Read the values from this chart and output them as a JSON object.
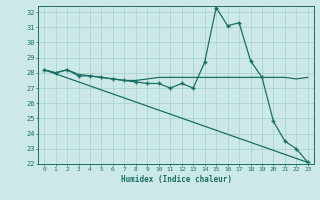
{
  "title": "",
  "xlabel": "Humidex (Indice chaleur)",
  "ylabel": "",
  "xlim": [
    -0.5,
    23.5
  ],
  "ylim": [
    22,
    32.4
  ],
  "yticks": [
    22,
    23,
    24,
    25,
    26,
    27,
    28,
    29,
    30,
    31,
    32
  ],
  "xticks": [
    0,
    1,
    2,
    3,
    4,
    5,
    6,
    7,
    8,
    9,
    10,
    11,
    12,
    13,
    14,
    15,
    16,
    17,
    18,
    19,
    20,
    21,
    22,
    23
  ],
  "bg_color": "#cce9e8",
  "grid_color": "#aad4d3",
  "line_color": "#1a6e65",
  "line1_x": [
    0,
    1,
    2,
    3,
    4,
    5,
    6,
    7,
    8,
    9,
    10,
    11,
    12,
    13,
    14,
    15,
    16,
    17,
    18,
    19,
    20,
    21,
    22,
    23
  ],
  "line1_y": [
    28.2,
    28.0,
    28.2,
    27.8,
    27.8,
    27.7,
    27.6,
    27.5,
    27.4,
    27.3,
    27.3,
    27.0,
    27.3,
    27.0,
    28.7,
    32.3,
    31.1,
    31.3,
    28.8,
    27.7,
    24.8,
    23.5,
    23.0,
    22.1
  ],
  "line2_x": [
    0,
    1,
    2,
    3,
    4,
    5,
    6,
    7,
    8,
    9,
    10,
    11,
    12,
    13,
    14,
    15,
    16,
    17,
    18,
    19,
    20,
    21,
    22,
    23
  ],
  "line2_y": [
    28.2,
    28.0,
    28.2,
    27.9,
    27.8,
    27.7,
    27.6,
    27.5,
    27.5,
    27.6,
    27.7,
    27.7,
    27.7,
    27.7,
    27.7,
    27.7,
    27.7,
    27.7,
    27.7,
    27.7,
    27.7,
    27.7,
    27.6,
    27.7
  ],
  "line3_x": [
    0,
    23
  ],
  "line3_y": [
    28.2,
    22.1
  ]
}
